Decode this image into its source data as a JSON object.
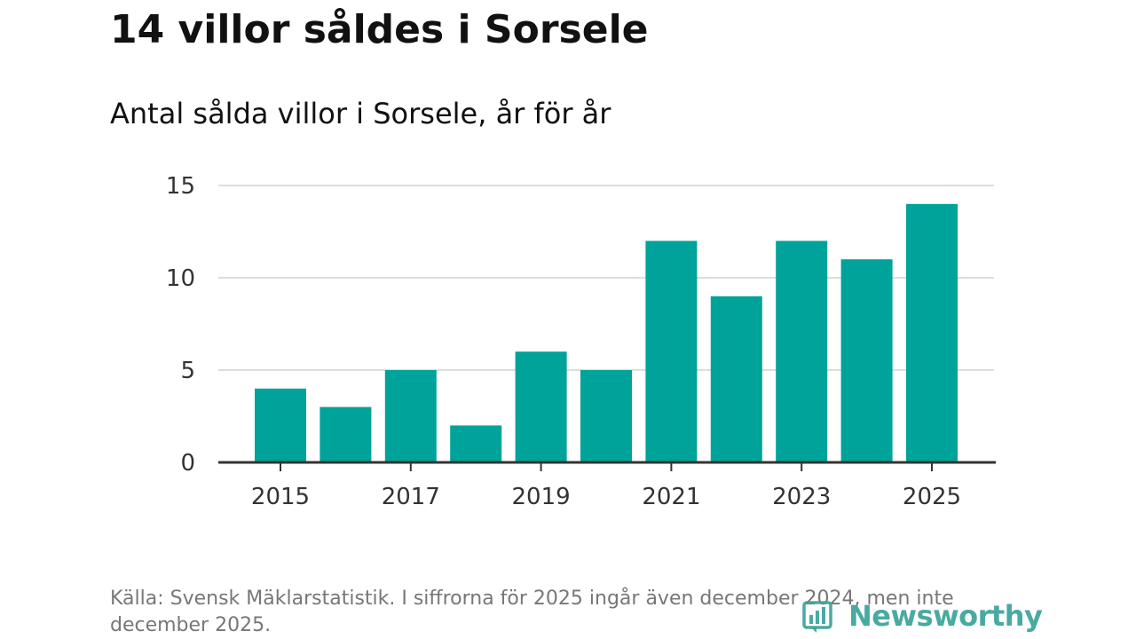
{
  "title": "14 villor såldes i Sorsele",
  "subtitle": "Antal sålda villor i Sorsele, år för år",
  "source": "Källa: Svensk Mäklarstatistik. I siffrorna för 2025 ingår även december 2024, men inte december 2025.",
  "logo": {
    "text": "Newsworthy",
    "icon": "newsworthy-logo-icon",
    "color": "#3aa39a"
  },
  "chart_data": {
    "type": "bar",
    "title": "14 villor såldes i Sorsele",
    "subtitle": "Antal sålda villor i Sorsele, år för år",
    "xlabel": "",
    "ylabel": "",
    "categories": [
      "2015",
      "2016",
      "2017",
      "2018",
      "2019",
      "2020",
      "2021",
      "2022",
      "2023",
      "2024",
      "2025"
    ],
    "values": [
      4,
      3,
      5,
      2,
      6,
      5,
      12,
      9,
      12,
      11,
      14
    ],
    "x_tick_labels": [
      "2015",
      "2017",
      "2019",
      "2021",
      "2023",
      "2025"
    ],
    "y_ticks": [
      0,
      5,
      10,
      15
    ],
    "ylim": [
      0,
      15
    ],
    "grid": true,
    "bar_color": "#00a39a",
    "grid_color": "#dddddd",
    "axis_color": "#333333"
  }
}
